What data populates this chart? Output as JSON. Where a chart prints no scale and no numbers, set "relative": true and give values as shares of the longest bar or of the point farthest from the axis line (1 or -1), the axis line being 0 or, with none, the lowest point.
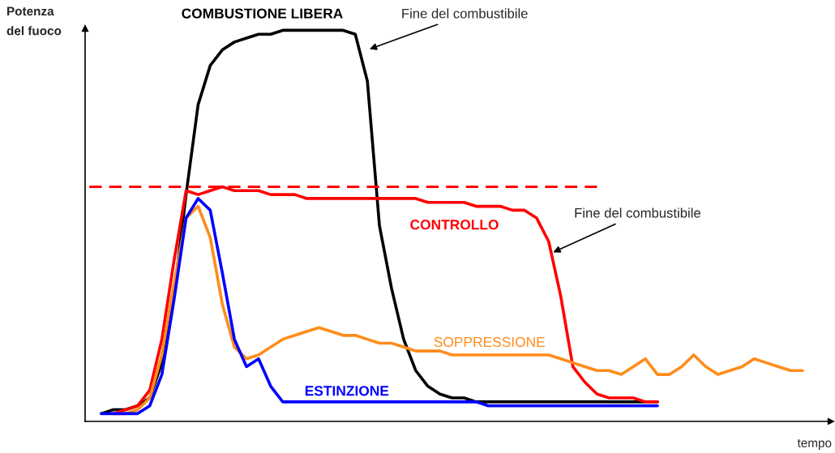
{
  "chart_data": {
    "type": "line",
    "relative": true,
    "ylabel": "Potenza\ndel fuoco",
    "xlabel": "tempo",
    "legend": false,
    "grid": false,
    "categories": [
      null,
      null,
      null,
      null,
      null,
      null,
      null,
      null,
      null,
      null,
      null,
      null,
      null,
      null,
      null,
      null,
      null,
      null,
      null,
      null,
      null,
      null,
      null,
      null,
      null,
      null,
      null,
      null,
      null,
      null,
      null,
      null,
      null,
      null,
      null,
      null,
      null,
      null,
      null,
      null,
      null,
      null,
      null,
      null,
      null,
      null,
      null,
      null,
      null,
      null,
      null,
      null,
      null,
      null,
      null,
      null,
      null,
      null,
      null,
      null
    ],
    "series": [
      {
        "name": "COMBUSTIONE LIBERA",
        "color": "#000000",
        "values": [
          null,
          0.02,
          0.03,
          0.03,
          0.04,
          0.06,
          0.15,
          0.32,
          0.58,
          0.81,
          0.91,
          0.95,
          0.97,
          0.98,
          0.99,
          0.99,
          1.0,
          1.0,
          1.0,
          1.0,
          1.0,
          1.0,
          0.99,
          0.87,
          0.5,
          0.34,
          0.21,
          0.13,
          0.09,
          0.07,
          0.06,
          0.06,
          0.05,
          0.05,
          0.05,
          0.05,
          0.05,
          0.05,
          0.05,
          0.05,
          0.05,
          0.05,
          0.05,
          0.05,
          0.05,
          0.05,
          0.05,
          0.05,
          null,
          null,
          null,
          null,
          null,
          null,
          null,
          null,
          null,
          null,
          null,
          null
        ]
      },
      {
        "name": "CONTROLLO",
        "color": "#ff0000",
        "values": [
          null,
          null,
          0.02,
          0.03,
          0.04,
          0.08,
          0.21,
          0.41,
          0.59,
          0.58,
          0.59,
          0.6,
          0.59,
          0.59,
          0.59,
          0.58,
          0.58,
          0.58,
          0.57,
          0.57,
          0.57,
          0.57,
          0.57,
          0.57,
          0.57,
          0.57,
          0.57,
          0.57,
          0.56,
          0.56,
          0.56,
          0.56,
          0.55,
          0.55,
          0.55,
          0.54,
          0.54,
          0.52,
          0.46,
          0.32,
          0.14,
          0.1,
          0.07,
          0.06,
          0.06,
          0.06,
          0.05,
          0.05,
          null,
          null,
          null,
          null,
          null,
          null,
          null,
          null,
          null,
          null,
          null,
          null
        ]
      },
      {
        "name": "SOPPRESSIONE",
        "color": "#ff8c1a",
        "values": [
          null,
          null,
          0.02,
          0.02,
          0.03,
          0.06,
          0.17,
          0.35,
          0.52,
          0.55,
          0.47,
          0.3,
          0.19,
          0.16,
          0.17,
          0.19,
          0.21,
          0.22,
          0.23,
          0.24,
          0.23,
          0.22,
          0.22,
          0.21,
          0.2,
          0.2,
          0.19,
          0.18,
          0.18,
          0.18,
          0.17,
          0.17,
          0.17,
          0.17,
          0.17,
          0.17,
          0.17,
          0.17,
          0.17,
          0.16,
          0.15,
          0.14,
          0.13,
          0.13,
          0.12,
          0.14,
          0.16,
          0.12,
          0.12,
          0.14,
          0.17,
          0.14,
          0.12,
          0.13,
          0.14,
          0.16,
          0.15,
          0.14,
          0.13,
          0.13
        ]
      },
      {
        "name": "ESTINZIONE",
        "color": "#0000ff",
        "values": [
          null,
          0.02,
          0.02,
          0.02,
          0.02,
          0.04,
          0.12,
          0.31,
          0.52,
          0.57,
          0.54,
          0.38,
          0.21,
          0.14,
          0.16,
          0.09,
          0.05,
          0.05,
          0.05,
          0.05,
          0.05,
          0.05,
          0.05,
          0.05,
          0.05,
          0.05,
          0.05,
          0.05,
          0.05,
          0.05,
          0.05,
          0.05,
          0.05,
          0.04,
          0.04,
          0.04,
          0.04,
          0.04,
          0.04,
          0.04,
          0.04,
          0.04,
          0.04,
          0.04,
          0.04,
          0.04,
          0.04,
          0.04,
          null,
          null,
          null,
          null,
          null,
          null,
          null,
          null,
          null,
          null,
          null,
          null
        ]
      },
      {
        "color": "#ff0000",
        "line_style": "dashed",
        "values": [
          0.6,
          0.6,
          0.6,
          0.6,
          0.6,
          0.6,
          0.6,
          0.6,
          0.6,
          0.6,
          0.6,
          0.6,
          0.6,
          0.6,
          0.6,
          0.6,
          0.6,
          0.6,
          0.6,
          0.6,
          0.6,
          0.6,
          0.6,
          0.6,
          0.6,
          0.6,
          0.6,
          0.6,
          0.6,
          0.6,
          0.6,
          0.6,
          0.6,
          0.6,
          0.6,
          0.6,
          0.6,
          0.6,
          0.6,
          0.6,
          0.6,
          0.6,
          0.6,
          null,
          null,
          null,
          null,
          null,
          null,
          null,
          null,
          null,
          null,
          null,
          null,
          null,
          null,
          null,
          null,
          null
        ]
      }
    ],
    "annotations": [
      "Fine del combustibile",
      "Fine del combustibile"
    ]
  }
}
